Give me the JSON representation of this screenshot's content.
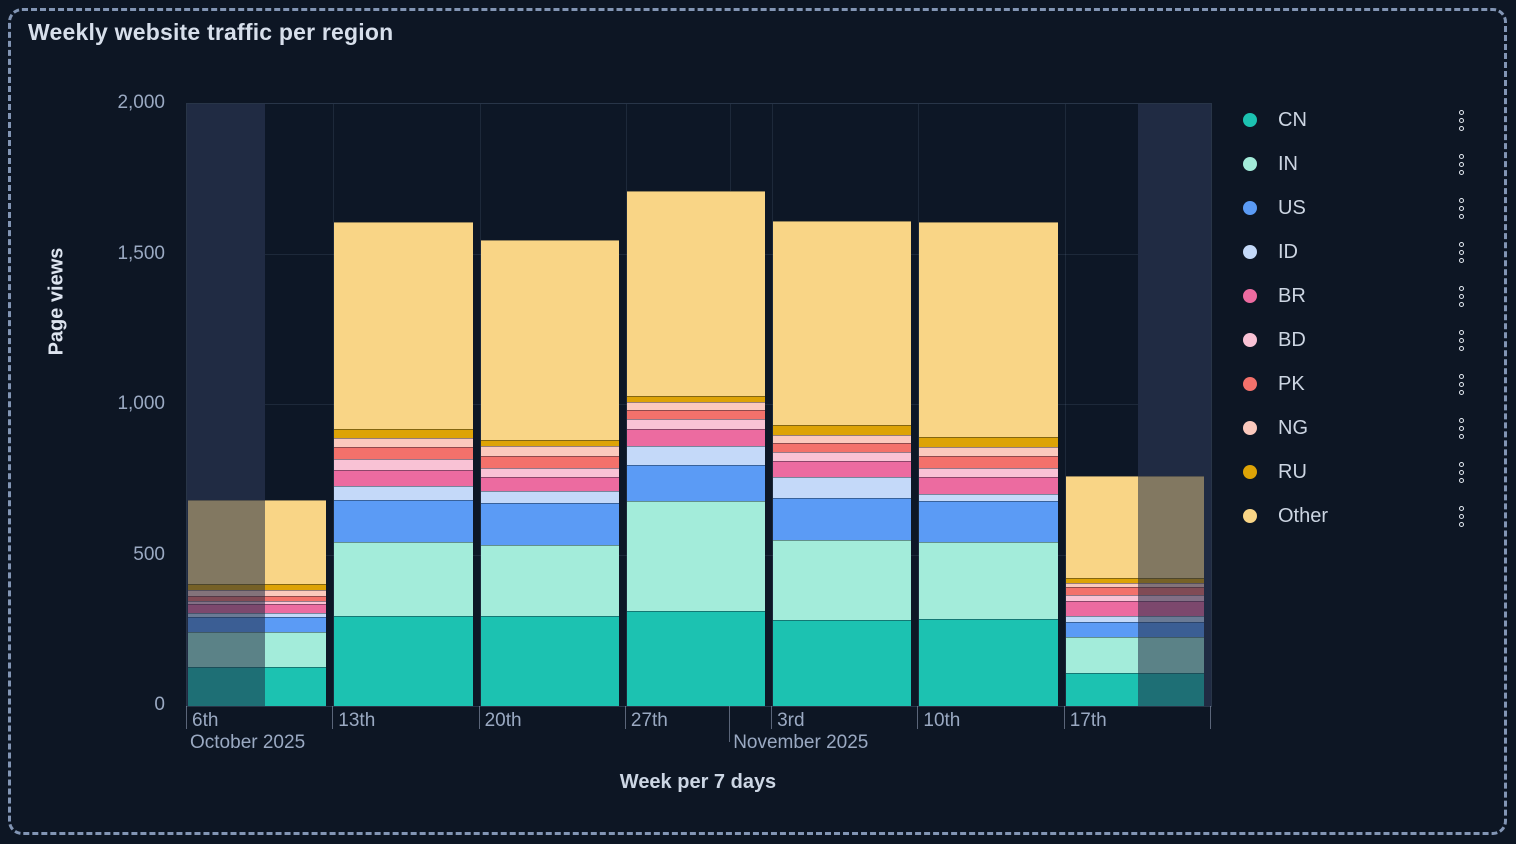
{
  "page": {
    "title": "Weekly website traffic per region"
  },
  "theme": {
    "background": "#0d1624",
    "plot_background": "#0d1726",
    "frame_border": "#8295b4",
    "grid_color": "rgba(110,132,163,0.17)",
    "text_muted": "#9aa9c2",
    "text_bright": "#d7dfeb",
    "dimmed_band_back": "#202c44",
    "dimmed_band_front": "rgba(32,44,68,0.55)"
  },
  "legend": {
    "menu_icon": "kebab-vertical-dots"
  },
  "chart_data": {
    "type": "bar",
    "stacked": true,
    "title": "Weekly website traffic per region",
    "xlabel": "Week per 7 days",
    "ylabel": "Page views",
    "ylim": [
      0,
      2000
    ],
    "grid": true,
    "legend_position": "right",
    "yticks": {
      "values": [
        0,
        500,
        1000,
        1500,
        2000
      ],
      "labels": [
        "0",
        "500",
        "1,000",
        "1,500",
        "2,000"
      ]
    },
    "categories": [
      "6th",
      "13th",
      "20th",
      "27th",
      "3rd",
      "10th",
      "17th"
    ],
    "month_labels": [
      {
        "label": "October 2025",
        "frac": 0.0,
        "long_tick": false
      },
      {
        "label": "November 2025",
        "frac": 0.5305,
        "long_tick": true
      }
    ],
    "series": [
      {
        "name": "CN",
        "color": "#1cc2b1",
        "values": [
          130,
          300,
          300,
          315,
          285,
          290,
          110
        ]
      },
      {
        "name": "IN",
        "color": "#a3ecda",
        "values": [
          115,
          245,
          235,
          365,
          265,
          255,
          120
        ]
      },
      {
        "name": "US",
        "color": "#5b9bf5",
        "values": [
          50,
          140,
          140,
          120,
          140,
          135,
          50
        ]
      },
      {
        "name": "ID",
        "color": "#c4d9f9",
        "values": [
          15,
          45,
          40,
          65,
          70,
          25,
          20
        ]
      },
      {
        "name": "BR",
        "color": "#ec6ba0",
        "values": [
          30,
          55,
          45,
          55,
          55,
          55,
          50
        ]
      },
      {
        "name": "BD",
        "color": "#f9c2d5",
        "values": [
          10,
          35,
          30,
          35,
          30,
          30,
          20
        ]
      },
      {
        "name": "PK",
        "color": "#f3716b",
        "values": [
          15,
          40,
          40,
          30,
          30,
          40,
          25
        ]
      },
      {
        "name": "NG",
        "color": "#fbc9bd",
        "values": [
          20,
          30,
          35,
          25,
          25,
          30,
          15
        ]
      },
      {
        "name": "RU",
        "color": "#dda306",
        "values": [
          20,
          30,
          20,
          20,
          35,
          35,
          15
        ]
      },
      {
        "name": "Other",
        "color": "#f9d586",
        "values": [
          280,
          690,
          665,
          680,
          675,
          715,
          340
        ]
      }
    ],
    "totals": [
      685,
      1610,
      1550,
      1710,
      1610,
      1610,
      765
    ],
    "dimmed_ranges_frac": [
      [
        0.0,
        0.0762
      ],
      [
        0.9287,
        1.0
      ]
    ]
  }
}
